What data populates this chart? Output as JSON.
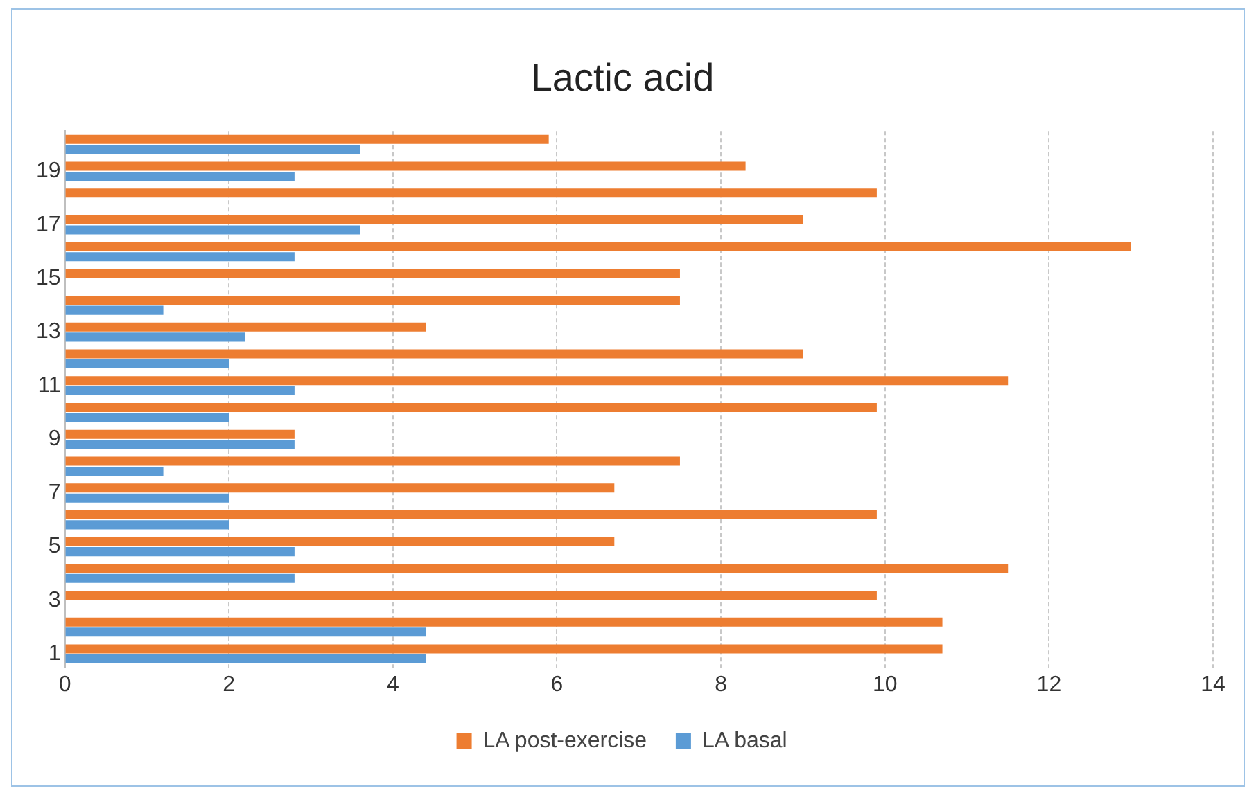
{
  "chart_data": {
    "type": "bar",
    "orientation": "horizontal",
    "title": "Lactic acid",
    "categories": [
      null,
      "19",
      null,
      "17",
      null,
      "15",
      null,
      "13",
      null,
      "11",
      null,
      "9",
      null,
      "7",
      null,
      "5",
      null,
      "3",
      null,
      "1"
    ],
    "series": [
      {
        "name": "LA post-exercise",
        "color": "#ed7d31",
        "values": [
          5.9,
          8.3,
          9.9,
          9.0,
          13.0,
          7.5,
          7.5,
          4.4,
          9.0,
          11.5,
          9.9,
          2.8,
          7.5,
          6.7,
          9.9,
          6.7,
          11.5,
          9.9,
          10.7,
          10.7
        ]
      },
      {
        "name": "LA basal",
        "color": "#5b9bd5",
        "values": [
          3.6,
          2.8,
          0,
          3.6,
          2.8,
          0,
          1.2,
          2.2,
          2.0,
          2.8,
          2.0,
          2.8,
          1.2,
          2.0,
          2.0,
          2.8,
          2.8,
          0,
          4.4,
          4.4
        ]
      }
    ],
    "xlim": [
      0,
      14
    ],
    "xticks": [
      0,
      2,
      4,
      6,
      8,
      10,
      12,
      14
    ],
    "grid": "x",
    "legend": "bottom"
  }
}
